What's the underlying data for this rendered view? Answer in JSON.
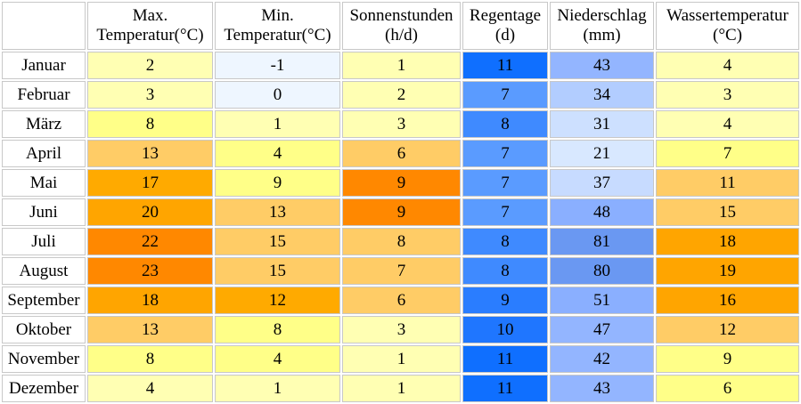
{
  "columns": [
    {
      "line1": "",
      "line2": ""
    },
    {
      "line1": "Max.",
      "line2": "Temperatur(°C)"
    },
    {
      "line1": "Min.",
      "line2": "Temperatur(°C)"
    },
    {
      "line1": "Sonnenstunden",
      "line2": "(h/d)"
    },
    {
      "line1": "Regentage",
      "line2": "(d)"
    },
    {
      "line1": "Niederschlag",
      "line2": "(mm)"
    },
    {
      "line1": "Wassertemperatur",
      "line2": "(°C)"
    }
  ],
  "rows": [
    {
      "month": "Januar",
      "max": "2",
      "min": "-1",
      "sun": "1",
      "rain": "11",
      "prec": "43",
      "water": "4"
    },
    {
      "month": "Februar",
      "max": "3",
      "min": "0",
      "sun": "2",
      "rain": "7",
      "prec": "34",
      "water": "3"
    },
    {
      "month": "März",
      "max": "8",
      "min": "1",
      "sun": "3",
      "rain": "8",
      "prec": "31",
      "water": "4"
    },
    {
      "month": "April",
      "max": "13",
      "min": "4",
      "sun": "6",
      "rain": "7",
      "prec": "21",
      "water": "7"
    },
    {
      "month": "Mai",
      "max": "17",
      "min": "9",
      "sun": "9",
      "rain": "7",
      "prec": "37",
      "water": "11"
    },
    {
      "month": "Juni",
      "max": "20",
      "min": "13",
      "sun": "9",
      "rain": "7",
      "prec": "48",
      "water": "15"
    },
    {
      "month": "Juli",
      "max": "22",
      "min": "15",
      "sun": "8",
      "rain": "8",
      "prec": "81",
      "water": "18"
    },
    {
      "month": "August",
      "max": "23",
      "min": "15",
      "sun": "7",
      "rain": "8",
      "prec": "80",
      "water": "19"
    },
    {
      "month": "September",
      "max": "18",
      "min": "12",
      "sun": "6",
      "rain": "9",
      "prec": "51",
      "water": "16"
    },
    {
      "month": "Oktober",
      "max": "13",
      "min": "8",
      "sun": "3",
      "rain": "10",
      "prec": "47",
      "water": "12"
    },
    {
      "month": "November",
      "max": "8",
      "min": "4",
      "sun": "1",
      "rain": "11",
      "prec": "42",
      "water": "9"
    },
    {
      "month": "Dezember",
      "max": "4",
      "min": "1",
      "sun": "1",
      "rain": "11",
      "prec": "43",
      "water": "6"
    }
  ],
  "colors": {
    "max": [
      "#ffffb3",
      "#ffffb3",
      "#ffff88",
      "#ffcc66",
      "#ffaa00",
      "#ffa500",
      "#ff8800",
      "#ff8800",
      "#ffa500",
      "#ffcc66",
      "#ffff88",
      "#ffffb3"
    ],
    "min": [
      "#eef6ff",
      "#eef6ff",
      "#ffffb3",
      "#ffff88",
      "#ffff88",
      "#ffcc66",
      "#ffcc66",
      "#ffcc66",
      "#ffaa00",
      "#ffff88",
      "#ffff88",
      "#ffffb3"
    ],
    "sun": [
      "#ffffb3",
      "#ffffb3",
      "#ffffb3",
      "#ffcc66",
      "#ff8800",
      "#ff8800",
      "#ffcc66",
      "#ffcc66",
      "#ffcc66",
      "#ffffb3",
      "#ffffb3",
      "#ffffb3"
    ],
    "rain": [
      "#0f6fff",
      "#5a9bff",
      "#3f8aff",
      "#5a9bff",
      "#5a9bff",
      "#5a9bff",
      "#3f8aff",
      "#3f8aff",
      "#2a7dff",
      "#1f76ff",
      "#0f6fff",
      "#0f6fff"
    ],
    "prec": [
      "#93b5ff",
      "#b2cdff",
      "#cde0ff",
      "#d8e8ff",
      "#c7dbff",
      "#8aafff",
      "#6a98f2",
      "#6a98f2",
      "#8aafff",
      "#93b5ff",
      "#93b5ff",
      "#93b5ff"
    ],
    "water": [
      "#ffffb3",
      "#ffffb3",
      "#ffffb3",
      "#ffff88",
      "#ffcc66",
      "#ffcc66",
      "#ffa500",
      "#ffa500",
      "#ffa500",
      "#ffcc66",
      "#ffff88",
      "#ffff88"
    ]
  }
}
